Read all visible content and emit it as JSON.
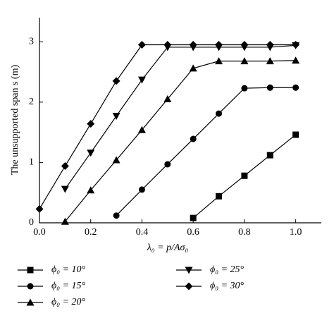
{
  "chart_data": {
    "type": "line",
    "y_label": "The unsupported span s (m)",
    "x_label": "λ₀ = p/Aσ₀",
    "xlim": [
      0,
      1.1
    ],
    "ylim": [
      0,
      3.4
    ],
    "xticks": [
      {
        "value": 0,
        "label": "0.0"
      },
      0.2,
      0.4,
      0.6,
      0.8,
      {
        "value": 1,
        "label": "1.0"
      }
    ],
    "yticks": [
      0,
      1,
      2,
      3
    ],
    "series": [
      {
        "name": "ϕ₀ = 10°",
        "color": "#000000",
        "marker": "square",
        "x": [
          0.6,
          0.7,
          0.8,
          0.9,
          1.0
        ],
        "values": [
          0.08,
          0.44,
          0.78,
          1.12,
          1.46
        ]
      },
      {
        "name": "ϕ₀ = 15°",
        "color": "#000000",
        "marker": "circle",
        "x": [
          0.3,
          0.4,
          0.5,
          0.6,
          0.7,
          0.8,
          0.9,
          1.0
        ],
        "values": [
          0.12,
          0.55,
          0.97,
          1.39,
          1.81,
          2.23,
          2.24,
          2.24
        ]
      },
      {
        "name": "ϕ₀ = 20°",
        "color": "#000000",
        "marker": "triangle",
        "x": [
          0.1,
          0.2,
          0.3,
          0.4,
          0.5,
          0.6,
          0.7,
          0.8,
          0.9,
          1.0
        ],
        "values": [
          0.02,
          0.54,
          1.04,
          1.54,
          2.05,
          2.56,
          2.68,
          2.68,
          2.68,
          2.69
        ]
      },
      {
        "name": "ϕ₀ = 25°",
        "color": "#000000",
        "marker": "triangle-down",
        "x": [
          0.1,
          0.2,
          0.3,
          0.4,
          0.5,
          0.6,
          0.7,
          0.8,
          0.9,
          1.0
        ],
        "values": [
          0.56,
          1.16,
          1.77,
          2.37,
          2.91,
          2.91,
          2.91,
          2.91,
          2.91,
          2.94
        ]
      },
      {
        "name": "ϕ₀ = 30°",
        "color": "#000000",
        "marker": "diamond",
        "x": [
          0.0,
          0.1,
          0.2,
          0.3,
          0.4,
          0.5,
          0.6,
          0.7,
          0.8,
          0.9,
          1.0
        ],
        "values": [
          0.23,
          0.94,
          1.64,
          2.35,
          2.95,
          2.95,
          2.95,
          2.95,
          2.95,
          2.95,
          2.95
        ]
      }
    ]
  }
}
